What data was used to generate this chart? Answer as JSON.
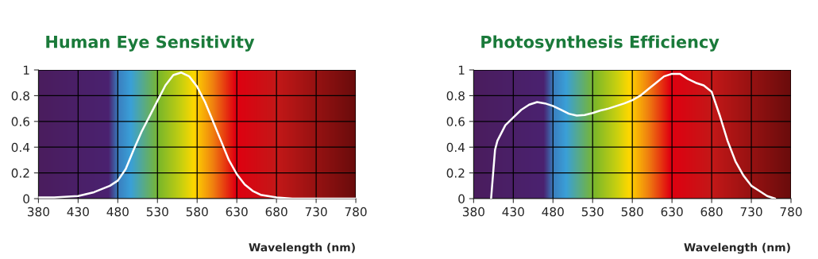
{
  "chart_data": [
    {
      "type": "line",
      "title": "Human Eye Sensitivity",
      "xlabel": "Wavelength (nm)",
      "xlim": [
        380,
        780
      ],
      "xticks": [
        380,
        430,
        480,
        530,
        580,
        630,
        680,
        730,
        780
      ],
      "ylim": [
        0,
        1
      ],
      "yticks": [
        0,
        0.2,
        0.4,
        0.6,
        0.8,
        1
      ],
      "grid": true,
      "legend": false,
      "series": [
        {
          "color": "#ffffff",
          "x": [
            380,
            400,
            430,
            450,
            470,
            480,
            490,
            500,
            510,
            520,
            530,
            540,
            550,
            560,
            570,
            580,
            590,
            600,
            610,
            620,
            630,
            640,
            650,
            660,
            680,
            700,
            780
          ],
          "values": [
            0.01,
            0.01,
            0.02,
            0.05,
            0.1,
            0.14,
            0.23,
            0.38,
            0.52,
            0.64,
            0.76,
            0.88,
            0.96,
            0.98,
            0.95,
            0.87,
            0.75,
            0.6,
            0.45,
            0.3,
            0.19,
            0.11,
            0.06,
            0.03,
            0.01,
            0.0,
            0.0
          ]
        }
      ]
    },
    {
      "type": "line",
      "title": "Photosynthesis Efficiency",
      "xlabel": "Wavelength (nm)",
      "xlim": [
        380,
        780
      ],
      "xticks": [
        380,
        430,
        480,
        530,
        580,
        630,
        680,
        730,
        780
      ],
      "ylim": [
        0,
        1
      ],
      "yticks": [
        0,
        0.2,
        0.4,
        0.6,
        0.8,
        1
      ],
      "grid": true,
      "legend": false,
      "series": [
        {
          "color": "#ffffff",
          "x": [
            402,
            407,
            410,
            420,
            430,
            440,
            450,
            460,
            470,
            480,
            490,
            500,
            510,
            520,
            530,
            540,
            550,
            560,
            570,
            580,
            590,
            600,
            610,
            620,
            630,
            640,
            650,
            660,
            670,
            680,
            690,
            700,
            710,
            720,
            730,
            740,
            750,
            760
          ],
          "values": [
            0,
            0.38,
            0.45,
            0.57,
            0.63,
            0.69,
            0.73,
            0.75,
            0.74,
            0.72,
            0.69,
            0.66,
            0.645,
            0.65,
            0.665,
            0.685,
            0.7,
            0.72,
            0.74,
            0.765,
            0.8,
            0.85,
            0.9,
            0.95,
            0.97,
            0.97,
            0.93,
            0.9,
            0.88,
            0.83,
            0.65,
            0.45,
            0.29,
            0.18,
            0.1,
            0.06,
            0.02,
            0.0
          ]
        }
      ]
    }
  ]
}
